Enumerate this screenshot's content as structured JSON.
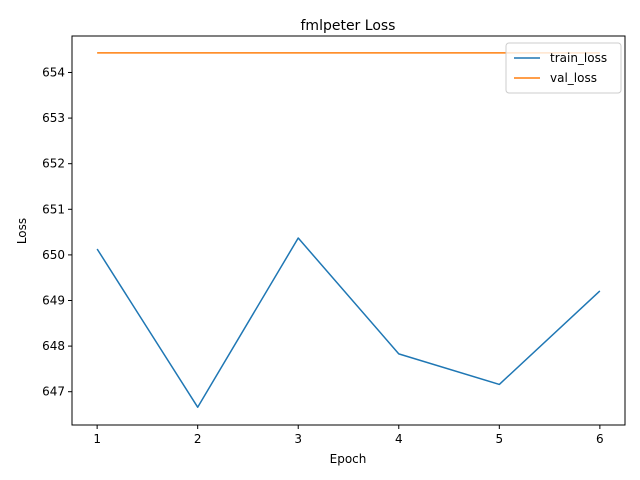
{
  "chart_data": {
    "type": "line",
    "title": "fmlpeter Loss",
    "xlabel": "Epoch",
    "ylabel": "Loss",
    "x": [
      1,
      2,
      3,
      4,
      5,
      6
    ],
    "xticks": [
      "1",
      "2",
      "3",
      "4",
      "5",
      "6"
    ],
    "yticks": [
      "647",
      "648",
      "649",
      "650",
      "651",
      "652",
      "653",
      "654"
    ],
    "xlim": [
      0.75,
      6.25
    ],
    "ylim": [
      646.27,
      654.8
    ],
    "grid": false,
    "legend_position": "upper right",
    "series": [
      {
        "name": "train_loss",
        "color": "#1f77b4",
        "values": [
          650.13,
          646.66,
          650.37,
          647.83,
          647.16,
          649.21
        ]
      },
      {
        "name": "val_loss",
        "color": "#ff7f0e",
        "values": [
          654.43,
          654.43,
          654.43,
          654.43,
          654.43,
          654.43
        ]
      }
    ]
  }
}
